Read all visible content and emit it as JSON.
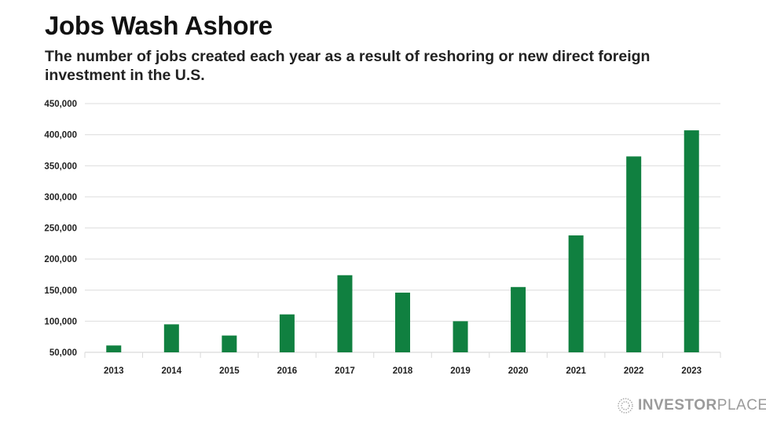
{
  "chart_data": {
    "type": "bar",
    "title": "Jobs Wash Ashore",
    "subtitle": "The number of jobs created each year as a result of reshoring or new direct foreign investment in the U.S.",
    "categories": [
      "2013",
      "2014",
      "2015",
      "2016",
      "2017",
      "2018",
      "2019",
      "2020",
      "2021",
      "2022",
      "2023"
    ],
    "values": [
      61000,
      95000,
      77000,
      111000,
      174000,
      146000,
      100000,
      155000,
      238000,
      365000,
      407000
    ],
    "ylim": [
      50000,
      450000
    ],
    "yticks": [
      50000,
      100000,
      150000,
      200000,
      250000,
      300000,
      350000,
      400000,
      450000
    ],
    "ytick_labels": [
      "50,000",
      "100,000",
      "150,000",
      "200,000",
      "250,000",
      "300,000",
      "350,000",
      "400,000",
      "450,000"
    ],
    "xlabel": "",
    "ylabel": "",
    "grid": true,
    "bar_color": "#108040"
  },
  "branding": {
    "logo_bold": "INVESTOR",
    "logo_light": "PLACE"
  }
}
